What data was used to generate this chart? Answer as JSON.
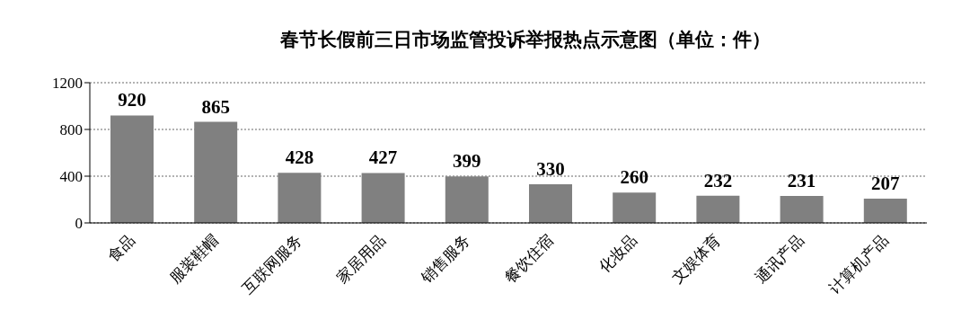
{
  "chart_data": {
    "type": "bar",
    "title": "春节长假前三日市场监管投诉举报热点示意图（单位：件）",
    "categories": [
      "食品",
      "服装鞋帽",
      "互联网服务",
      "家居用品",
      "销售服务",
      "餐饮住宿",
      "化妆品",
      "文娱体育",
      "通讯产品",
      "计算机产品"
    ],
    "values": [
      920,
      865,
      428,
      427,
      399,
      330,
      260,
      232,
      231,
      207
    ],
    "color": "#808080",
    "ylim": [
      0,
      1200
    ],
    "yticks": [
      0,
      400,
      800,
      1200
    ],
    "grid": "y",
    "data_labels": true
  }
}
